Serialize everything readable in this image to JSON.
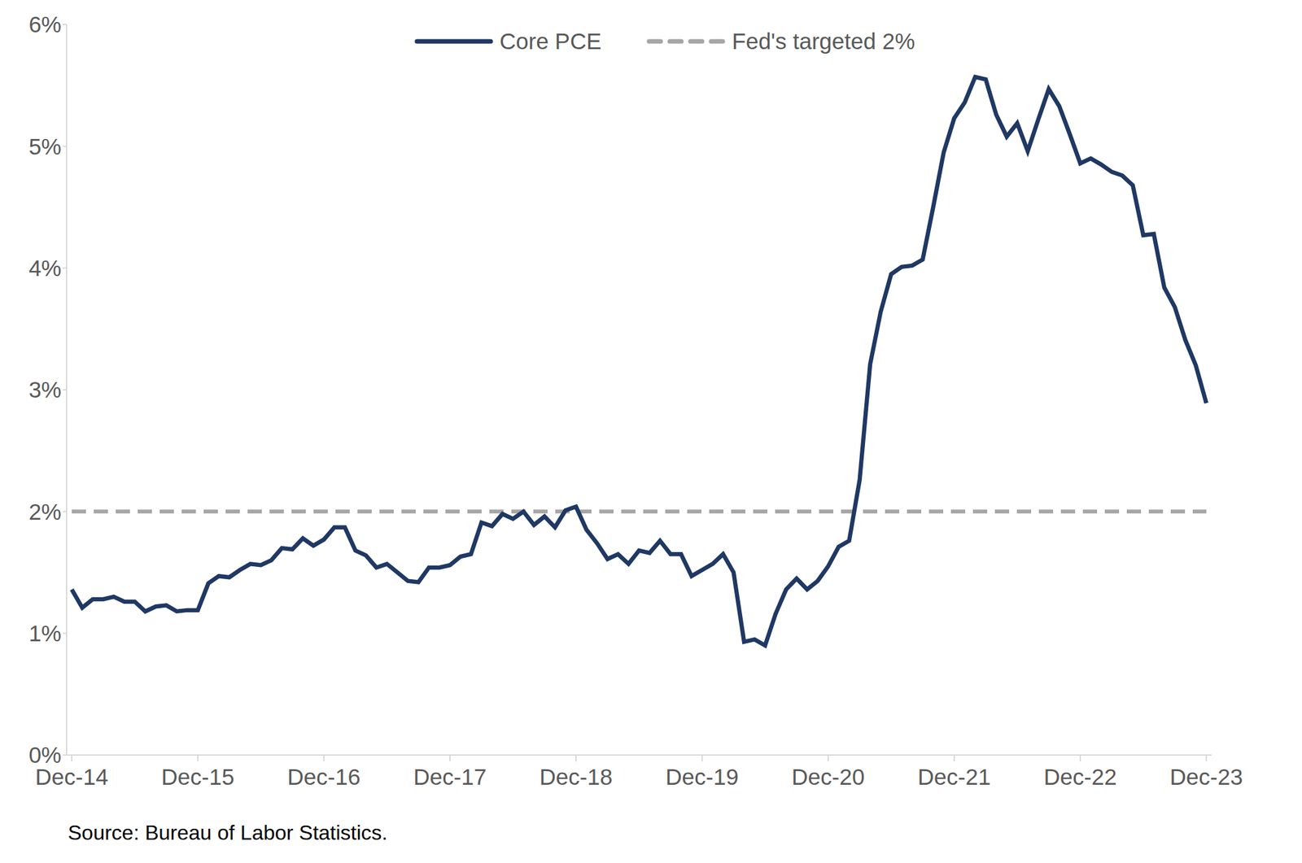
{
  "chart_data": {
    "type": "line",
    "source": "Source: Bureau of Labor Statistics.",
    "legend": "top",
    "grid": false,
    "categories": [
      "Dec-14",
      null,
      null,
      null,
      null,
      null,
      null,
      null,
      null,
      null,
      null,
      null,
      "Dec-15",
      null,
      null,
      null,
      null,
      null,
      null,
      null,
      null,
      null,
      null,
      null,
      "Dec-16",
      null,
      null,
      null,
      null,
      null,
      null,
      null,
      null,
      null,
      null,
      null,
      "Dec-17",
      null,
      null,
      null,
      null,
      null,
      null,
      null,
      null,
      null,
      null,
      null,
      "Dec-18",
      null,
      null,
      null,
      null,
      null,
      null,
      null,
      null,
      null,
      null,
      null,
      "Dec-19",
      null,
      null,
      null,
      null,
      null,
      null,
      null,
      null,
      null,
      null,
      null,
      "Dec-20",
      null,
      null,
      null,
      null,
      null,
      null,
      null,
      null,
      null,
      null,
      null,
      "Dec-21",
      null,
      null,
      null,
      null,
      null,
      null,
      null,
      null,
      null,
      null,
      null,
      "Dec-22",
      null,
      null,
      null,
      null,
      null,
      null,
      null,
      null,
      null,
      null,
      null,
      "Dec-23"
    ],
    "series": [
      {
        "name": "Core PCE",
        "color": "#1f3864",
        "line_style": "solid",
        "values": [
          1.36,
          1.21,
          1.28,
          1.28,
          1.3,
          1.26,
          1.26,
          1.18,
          1.22,
          1.23,
          1.18,
          1.19,
          1.19,
          1.41,
          1.47,
          1.46,
          1.52,
          1.57,
          1.56,
          1.6,
          1.7,
          1.69,
          1.78,
          1.72,
          1.77,
          1.87,
          1.87,
          1.68,
          1.64,
          1.54,
          1.57,
          1.5,
          1.43,
          1.42,
          1.54,
          1.54,
          1.56,
          1.63,
          1.65,
          1.91,
          1.88,
          1.98,
          1.94,
          2.0,
          1.89,
          1.96,
          1.87,
          2.01,
          2.04,
          1.85,
          1.74,
          1.61,
          1.65,
          1.57,
          1.68,
          1.66,
          1.76,
          1.65,
          1.65,
          1.47,
          1.52,
          1.57,
          1.65,
          1.5,
          0.93,
          0.95,
          0.9,
          1.16,
          1.36,
          1.45,
          1.36,
          1.43,
          1.55,
          1.71,
          1.76,
          2.26,
          3.21,
          3.64,
          3.95,
          4.01,
          4.02,
          4.07,
          4.5,
          4.95,
          5.23,
          5.36,
          5.57,
          5.55,
          5.26,
          5.08,
          5.19,
          4.96,
          5.22,
          5.47,
          5.33,
          5.1,
          4.86,
          4.9,
          4.85,
          4.79,
          4.76,
          4.68,
          4.27,
          4.28,
          3.84,
          3.68,
          3.41,
          3.2,
          2.89
        ]
      },
      {
        "name": "Fed's targeted 2%",
        "color": "#a6a6a6",
        "line_style": "dashed",
        "values": [
          2,
          2,
          2,
          2,
          2,
          2,
          2,
          2,
          2,
          2,
          2,
          2,
          2,
          2,
          2,
          2,
          2,
          2,
          2,
          2,
          2,
          2,
          2,
          2,
          2,
          2,
          2,
          2,
          2,
          2,
          2,
          2,
          2,
          2,
          2,
          2,
          2,
          2,
          2,
          2,
          2,
          2,
          2,
          2,
          2,
          2,
          2,
          2,
          2,
          2,
          2,
          2,
          2,
          2,
          2,
          2,
          2,
          2,
          2,
          2,
          2,
          2,
          2,
          2,
          2,
          2,
          2,
          2,
          2,
          2,
          2,
          2,
          2,
          2,
          2,
          2,
          2,
          2,
          2,
          2,
          2,
          2,
          2,
          2,
          2,
          2,
          2,
          2,
          2,
          2,
          2,
          2,
          2,
          2,
          2,
          2,
          2,
          2,
          2,
          2,
          2,
          2,
          2,
          2,
          2,
          2,
          2,
          2,
          2
        ]
      }
    ],
    "ylim": [
      0,
      6
    ],
    "yticks": [
      {
        "value": 0,
        "label": "0%"
      },
      {
        "value": 1,
        "label": "1%"
      },
      {
        "value": 2,
        "label": "2%"
      },
      {
        "value": 3,
        "label": "3%"
      },
      {
        "value": 4,
        "label": "4%"
      },
      {
        "value": 5,
        "label": "5%"
      },
      {
        "value": 6,
        "label": "6%"
      }
    ]
  }
}
